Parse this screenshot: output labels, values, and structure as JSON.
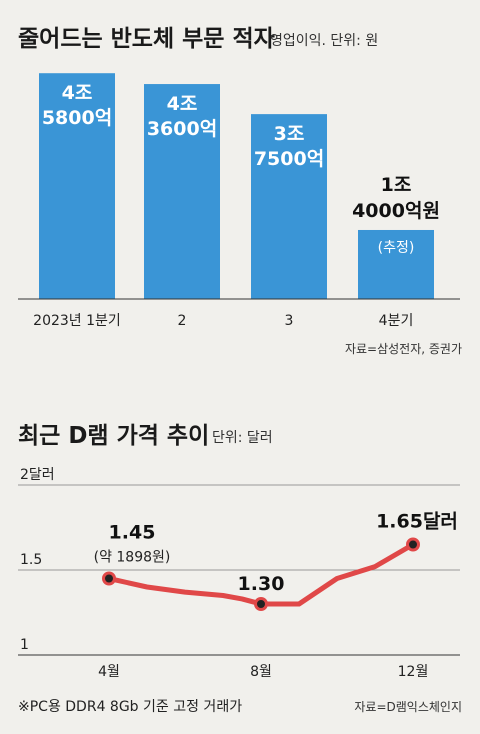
{
  "chart_data": [
    {
      "type": "bar",
      "title": "줄어드는 반도체 부문 적자",
      "subtitle": "영업이익. 단위: 원",
      "categories": [
        "2023년 1분기",
        "2",
        "3",
        "4분기"
      ],
      "values": [
        -4.58,
        -4.36,
        -3.75,
        -1.4
      ],
      "value_labels": [
        [
          "4조",
          "5800억"
        ],
        [
          "4조",
          "3600억"
        ],
        [
          "3조",
          "7500억"
        ],
        [
          "1조",
          "4000억원"
        ]
      ],
      "annotations": [
        "(추정)"
      ],
      "source": "자료=삼성전자, 증권가",
      "color": "#3a95d6"
    },
    {
      "type": "line",
      "title": "최근 D램 가격 추이",
      "subtitle": "단위: 달러",
      "y_ticks": [
        "2달러",
        "1.5",
        "1"
      ],
      "ylim": [
        1,
        2
      ],
      "x_ticks": [
        "4월",
        "8월",
        "12월"
      ],
      "series": [
        {
          "values": [
            1.45,
            1.4,
            1.37,
            1.35,
            1.33,
            1.3,
            1.3,
            1.45,
            1.52,
            1.65
          ]
        }
      ],
      "x": [
        4,
        5,
        6,
        7,
        7.5,
        8,
        9,
        10,
        11,
        12
      ],
      "labels": [
        {
          "text": "1.45",
          "sub": "(약 1898원)"
        },
        {
          "text": "1.30"
        },
        {
          "text": "1.65달러"
        }
      ],
      "footnote": "※PC용 DDR4 8Gb 기준 고정 거래가",
      "source": "자료=D램익스체인지",
      "color": "#e04848"
    }
  ]
}
